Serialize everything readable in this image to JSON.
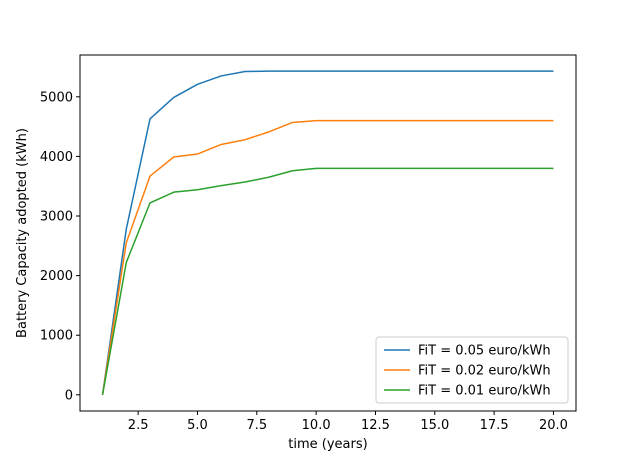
{
  "chart_data": {
    "type": "line",
    "title": "",
    "xlabel": "time (years)",
    "ylabel": "Battery Capacity adopted (kWh)",
    "xlim": [
      0.05,
      20.95
    ],
    "ylim": [
      -271.5,
      5701.5
    ],
    "xticks": [
      2.5,
      5.0,
      7.5,
      10.0,
      12.5,
      15.0,
      17.5,
      20.0
    ],
    "xtick_labels": [
      "2.5",
      "5.0",
      "7.5",
      "10.0",
      "12.5",
      "15.0",
      "17.5",
      "20.0"
    ],
    "yticks": [
      0,
      1000,
      2000,
      3000,
      4000,
      5000
    ],
    "ytick_labels": [
      "0",
      "1000",
      "2000",
      "3000",
      "4000",
      "5000"
    ],
    "grid": false,
    "legend_position": "lower-right",
    "x": [
      1,
      2,
      3,
      4,
      5,
      6,
      7,
      8,
      9,
      10,
      11,
      12,
      13,
      14,
      15,
      16,
      17,
      18,
      19,
      20
    ],
    "series": [
      {
        "name": "FiT = 0.05 euro/kWh",
        "color": "#1f77b4",
        "values": [
          0,
          2780,
          4630,
          4990,
          5210,
          5350,
          5425,
          5430,
          5430,
          5430,
          5430,
          5430,
          5430,
          5430,
          5430,
          5430,
          5430,
          5430,
          5430,
          5430
        ]
      },
      {
        "name": "FiT = 0.02 euro/kWh",
        "color": "#ff7f0e",
        "values": [
          0,
          2550,
          3670,
          3990,
          4040,
          4200,
          4280,
          4410,
          4570,
          4600,
          4600,
          4600,
          4600,
          4600,
          4600,
          4600,
          4600,
          4600,
          4600,
          4600
        ]
      },
      {
        "name": "FiT = 0.01 euro/kWh",
        "color": "#2ca02c",
        "values": [
          0,
          2220,
          3220,
          3400,
          3440,
          3510,
          3570,
          3650,
          3760,
          3800,
          3800,
          3800,
          3800,
          3800,
          3800,
          3800,
          3800,
          3800,
          3800,
          3800
        ]
      }
    ]
  }
}
